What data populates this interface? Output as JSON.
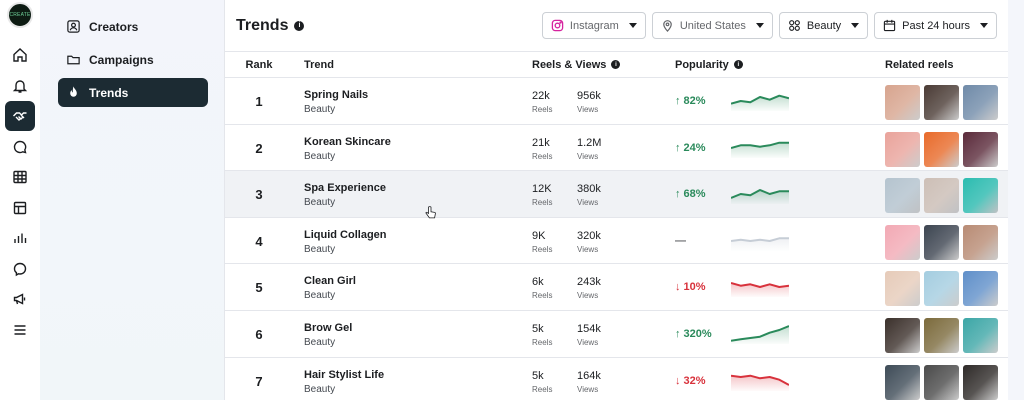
{
  "sidebar": {
    "logo": "CREATE",
    "icons": [
      "home-icon",
      "bell-icon",
      "handshake-icon",
      "chat-icon",
      "table-icon",
      "pages-icon",
      "bar-chart-icon",
      "messenger-icon",
      "megaphone-icon",
      "menu-icon"
    ],
    "active_index": 2
  },
  "subnav": {
    "items": [
      {
        "label": "Creators",
        "icon": "creators-icon"
      },
      {
        "label": "Campaigns",
        "icon": "folder-icon"
      },
      {
        "label": "Trends",
        "icon": "flame-icon"
      }
    ],
    "active_index": 2
  },
  "header": {
    "title": "Trends",
    "filters": [
      {
        "label": "Instagram",
        "icon": "instagram-icon"
      },
      {
        "label": "United States",
        "icon": "location-icon"
      },
      {
        "label": "Beauty",
        "icon": "category-icon"
      },
      {
        "label": "Past 24 hours",
        "icon": "calendar-icon"
      }
    ]
  },
  "table": {
    "columns": {
      "rank": "Rank",
      "trend": "Trend",
      "reels_views": "Reels & Views",
      "popularity": "Popularity",
      "related": "Related reels"
    },
    "reels_label": "Reels",
    "views_label": "Views",
    "rows": [
      {
        "rank": "1",
        "name": "Spring Nails",
        "category": "Beauty",
        "reels": "22k",
        "views": "956k",
        "change": "↑ 82%",
        "direction": "up",
        "spark": [
          4,
          6,
          5,
          9,
          7,
          10,
          8
        ],
        "thumbs": [
          "#d7a48e",
          "#4a3b35",
          "#6f8aa8"
        ]
      },
      {
        "rank": "2",
        "name": "Korean Skincare",
        "category": "Beauty",
        "reels": "21k",
        "views": "1.2M",
        "change": "↑ 24%",
        "direction": "up",
        "spark": [
          6,
          8,
          8,
          7,
          8,
          10,
          10
        ],
        "thumbs": [
          "#e9a39b",
          "#e86a2a",
          "#5a2a3a"
        ]
      },
      {
        "rank": "3",
        "name": "Spa Experience",
        "category": "Beauty",
        "reels": "12K",
        "views": "380k",
        "change": "↑ 68%",
        "direction": "up",
        "spark": [
          3,
          6,
          5,
          9,
          6,
          8,
          8
        ],
        "thumbs": [
          "#b5c4cf",
          "#cdbfb6",
          "#2bbcb0"
        ]
      },
      {
        "rank": "4",
        "name": "Liquid Collagen",
        "category": "Beauty",
        "reels": "9K",
        "views": "320k",
        "change": "—",
        "direction": "flat",
        "spark": [
          6,
          7,
          6,
          7,
          6,
          8,
          8
        ],
        "thumbs": [
          "#f2a9b4",
          "#3c4450",
          "#b88b74"
        ]
      },
      {
        "rank": "5",
        "name": "Clean Girl",
        "category": "Beauty",
        "reels": "6k",
        "views": "243k",
        "change": "↓ 10%",
        "direction": "down",
        "spark": [
          9,
          7,
          8,
          6,
          8,
          6,
          7
        ],
        "thumbs": [
          "#e6cbb9",
          "#a4cde0",
          "#5f8fc9"
        ]
      },
      {
        "rank": "6",
        "name": "Brow Gel",
        "category": "Beauty",
        "reels": "5k",
        "views": "154k",
        "change": "↑ 320%",
        "direction": "up",
        "spark": [
          1,
          2,
          3,
          4,
          7,
          9,
          12
        ],
        "thumbs": [
          "#3b302b",
          "#7b6a3c",
          "#3ca6a6"
        ]
      },
      {
        "rank": "7",
        "name": "Hair Stylist Life",
        "category": "Beauty",
        "reels": "5k",
        "views": "164k",
        "change": "↓ 32%",
        "direction": "down",
        "spark": [
          10,
          9,
          10,
          8,
          9,
          7,
          3
        ],
        "thumbs": [
          "#3e4b57",
          "#4a4a4a",
          "#2e2a28"
        ]
      }
    ]
  },
  "colors": {
    "up": "#2a8a5b",
    "down": "#d8323c",
    "flat": "#c6cdd6",
    "accent_dark": "#1c2b33"
  }
}
